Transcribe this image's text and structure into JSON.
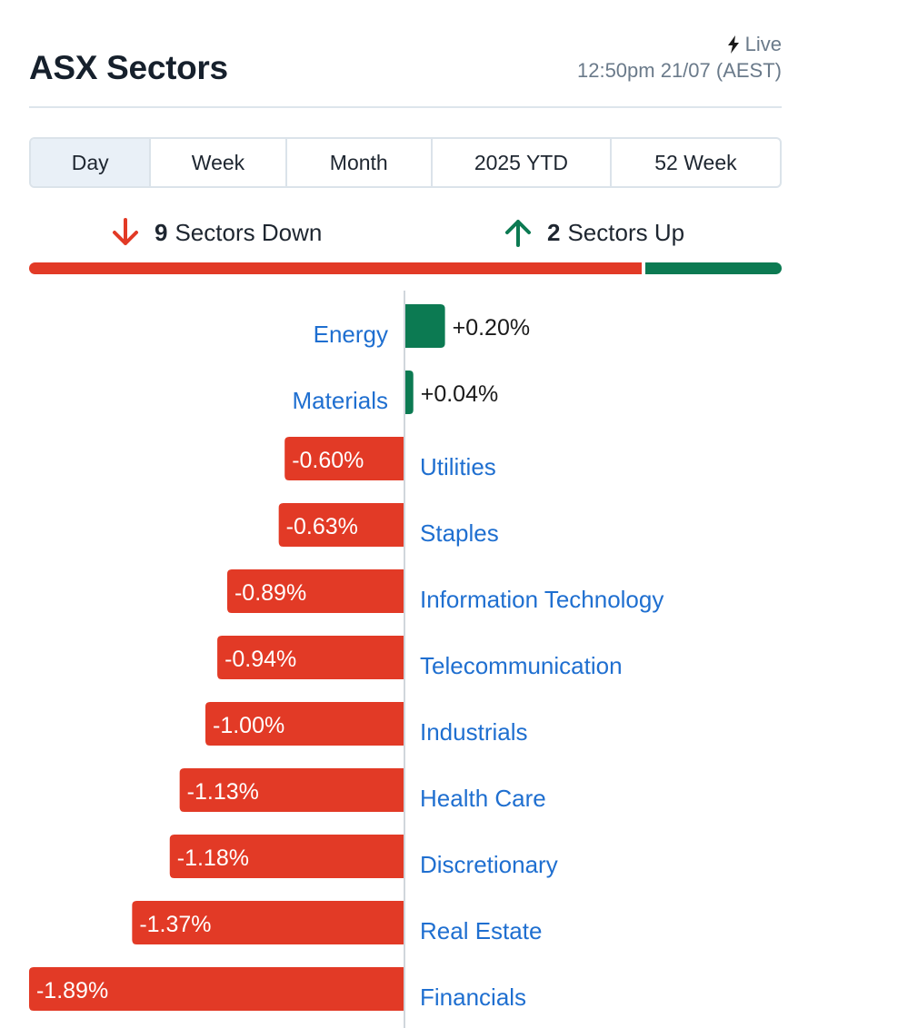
{
  "header": {
    "title": "ASX Sectors",
    "live_label": "Live",
    "timestamp": "12:50pm 21/07 (AEST)",
    "icons": {
      "live": "lightning-bolt-icon"
    }
  },
  "tabs": [
    {
      "label": "Day",
      "active": true
    },
    {
      "label": "Week",
      "active": false
    },
    {
      "label": "Month",
      "active": false
    },
    {
      "label": "2025 YTD",
      "active": false
    },
    {
      "label": "52 Week",
      "active": false
    }
  ],
  "summary": {
    "down_count": "9",
    "down_label": "Sectors Down",
    "up_count": "2",
    "up_label": "Sectors Up",
    "icons": {
      "down": "arrow-down-icon",
      "up": "arrow-up-icon"
    }
  },
  "colors": {
    "down": "#e23a26",
    "up": "#0c7a52",
    "link": "#1f6fd0",
    "axis": "#d0d6dc"
  },
  "chart_data": {
    "type": "bar",
    "orientation": "horizontal",
    "categories": [
      "Energy",
      "Materials",
      "Utilities",
      "Staples",
      "Information Technology",
      "Telecommunication",
      "Industrials",
      "Health Care",
      "Discretionary",
      "Real Estate",
      "Financials"
    ],
    "values": [
      0.2,
      0.04,
      -0.6,
      -0.63,
      -0.89,
      -0.94,
      -1.0,
      -1.13,
      -1.18,
      -1.37,
      -1.89
    ],
    "labels": [
      "+0.20%",
      "+0.04%",
      "-0.60%",
      "-0.63%",
      "-0.89%",
      "-0.94%",
      "-1.00%",
      "-1.13%",
      "-1.18%",
      "-1.37%",
      "-1.89%"
    ],
    "unit": "%"
  }
}
